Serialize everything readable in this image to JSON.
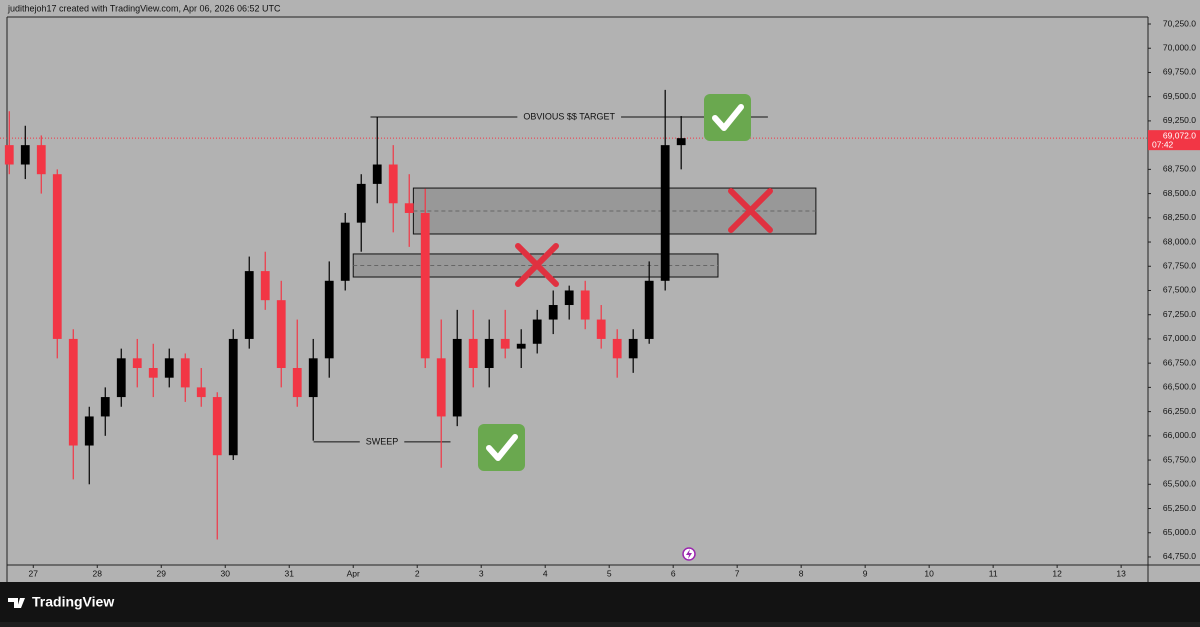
{
  "header": {
    "text": "judithejoh17 created with TradingView.com, Apr 06, 2026 06:52 UTC"
  },
  "footer": {
    "logo": "TradingView"
  },
  "chart_data": {
    "type": "candlestick",
    "up_color": "#000000",
    "down_color": "#f23645",
    "x": [
      -0.375,
      -0.125,
      0.125,
      0.375,
      0.625,
      0.875,
      1.125,
      1.375,
      1.625,
      1.875,
      2.125,
      2.375,
      2.625,
      2.875,
      3.125,
      3.375,
      3.625,
      3.875,
      4.125,
      4.375,
      4.625,
      4.875,
      5.125,
      5.375,
      5.625,
      5.875,
      6.125,
      6.375,
      6.625,
      6.875,
      7.125,
      7.375,
      7.625,
      7.875,
      8.125,
      8.375,
      8.625,
      8.875,
      9.125,
      9.375,
      9.625,
      9.875,
      10.125
    ],
    "open": [
      69000,
      68800,
      69000,
      68700,
      67000,
      65900,
      66200,
      66400,
      66800,
      66700,
      66600,
      66800,
      66500,
      66400,
      65800,
      67000,
      67700,
      67400,
      66700,
      66400,
      66800,
      67600,
      68200,
      68600,
      68800,
      68400,
      68300,
      66800,
      66200,
      67000,
      66700,
      67000,
      66900,
      66950,
      67200,
      67350,
      67500,
      67200,
      67000,
      66800,
      67000,
      67600,
      69000
    ],
    "high": [
      69350,
      69200,
      69100,
      68750,
      67100,
      66300,
      66500,
      66900,
      67000,
      66950,
      66900,
      66850,
      66700,
      66450,
      67100,
      67850,
      67900,
      67600,
      67200,
      67000,
      67800,
      68300,
      68700,
      69290,
      69000,
      68700,
      68550,
      67200,
      67300,
      67300,
      67200,
      67300,
      67100,
      67300,
      67500,
      67550,
      67600,
      67350,
      67100,
      67100,
      67800,
      69570,
      69300
    ],
    "low": [
      68700,
      68650,
      68500,
      66800,
      65550,
      65500,
      66000,
      66300,
      66500,
      66400,
      66500,
      66350,
      66300,
      64930,
      65750,
      66900,
      67300,
      66500,
      66300,
      65950,
      66600,
      67500,
      67900,
      68400,
      68100,
      67950,
      66700,
      65670,
      66100,
      66500,
      66500,
      66800,
      66700,
      66850,
      67050,
      67200,
      67100,
      66900,
      66600,
      66650,
      66950,
      67500,
      68750
    ],
    "close": [
      68800,
      69000,
      68700,
      67000,
      65900,
      66200,
      66400,
      66800,
      66700,
      66600,
      66800,
      66500,
      66400,
      65800,
      67000,
      67700,
      67400,
      66700,
      66400,
      66800,
      67600,
      68200,
      68600,
      68800,
      68400,
      68300,
      66800,
      66200,
      67000,
      66700,
      67000,
      66900,
      66950,
      67200,
      67350,
      67500,
      67200,
      67000,
      66800,
      67000,
      67600,
      69000,
      69072
    ],
    "xlim": [
      -0.52,
      17.42
    ],
    "ylim": [
      64667,
      70312
    ],
    "xticks": [
      {
        "value": 0,
        "label": "27"
      },
      {
        "value": 1,
        "label": "28"
      },
      {
        "value": 2,
        "label": "29"
      },
      {
        "value": 3,
        "label": "30"
      },
      {
        "value": 4,
        "label": "31"
      },
      {
        "value": 5,
        "label": "Apr"
      },
      {
        "value": 6,
        "label": "2"
      },
      {
        "value": 7,
        "label": "3"
      },
      {
        "value": 8,
        "label": "4"
      },
      {
        "value": 9,
        "label": "5"
      },
      {
        "value": 10,
        "label": "6"
      },
      {
        "value": 11,
        "label": "7"
      },
      {
        "value": 12,
        "label": "8"
      },
      {
        "value": 13,
        "label": "9"
      },
      {
        "value": 14,
        "label": "10"
      },
      {
        "value": 15,
        "label": "11"
      },
      {
        "value": 16,
        "label": "12"
      },
      {
        "value": 17,
        "label": "13"
      }
    ],
    "yticks": [
      {
        "value": 70250,
        "label": "70,250.0"
      },
      {
        "value": 70000,
        "label": "70,000.0"
      },
      {
        "value": 69750,
        "label": "69,750.0"
      },
      {
        "value": 69500,
        "label": "69,500.0"
      },
      {
        "value": 69250,
        "label": "69,250.0"
      },
      {
        "value": 69000,
        "label": "69,000.0"
      },
      {
        "value": 68750,
        "label": "68,750.0"
      },
      {
        "value": 68500,
        "label": "68,500.0"
      },
      {
        "value": 68250,
        "label": "68,250.0"
      },
      {
        "value": 68000,
        "label": "68,000.0"
      },
      {
        "value": 67750,
        "label": "67,750.0"
      },
      {
        "value": 67500,
        "label": "67,500.0"
      },
      {
        "value": 67250,
        "label": "67,250.0"
      },
      {
        "value": 67000,
        "label": "67,000.0"
      },
      {
        "value": 66750,
        "label": "66,750.0"
      },
      {
        "value": 66500,
        "label": "66,500.0"
      },
      {
        "value": 66250,
        "label": "66,250.0"
      },
      {
        "value": 66000,
        "label": "66,000.0"
      },
      {
        "value": 65750,
        "label": "65,750.0"
      },
      {
        "value": 65500,
        "label": "65,500.0"
      },
      {
        "value": 65250,
        "label": "65,250.0"
      },
      {
        "value": 65000,
        "label": "65,000.0"
      },
      {
        "value": 64750,
        "label": "64,750.0"
      }
    ],
    "grid": false,
    "last_price": {
      "value": 69072,
      "label": "69,072.0",
      "countdown": "07:42",
      "color": "#f23645"
    },
    "zones": [
      {
        "x": [
          5.94,
          12.23
        ],
        "y": [
          68083,
          68557
        ]
      },
      {
        "x": [
          5.0,
          10.7
        ],
        "y": [
          67639,
          67877
        ]
      }
    ],
    "levels": [
      {
        "label": "OBVIOUS $$ TARGET",
        "value": 69290,
        "x": [
          5.27,
          11.48
        ]
      },
      {
        "label": "SWEEP",
        "value": 65937,
        "x": [
          4.38,
          6.52
        ]
      }
    ]
  }
}
